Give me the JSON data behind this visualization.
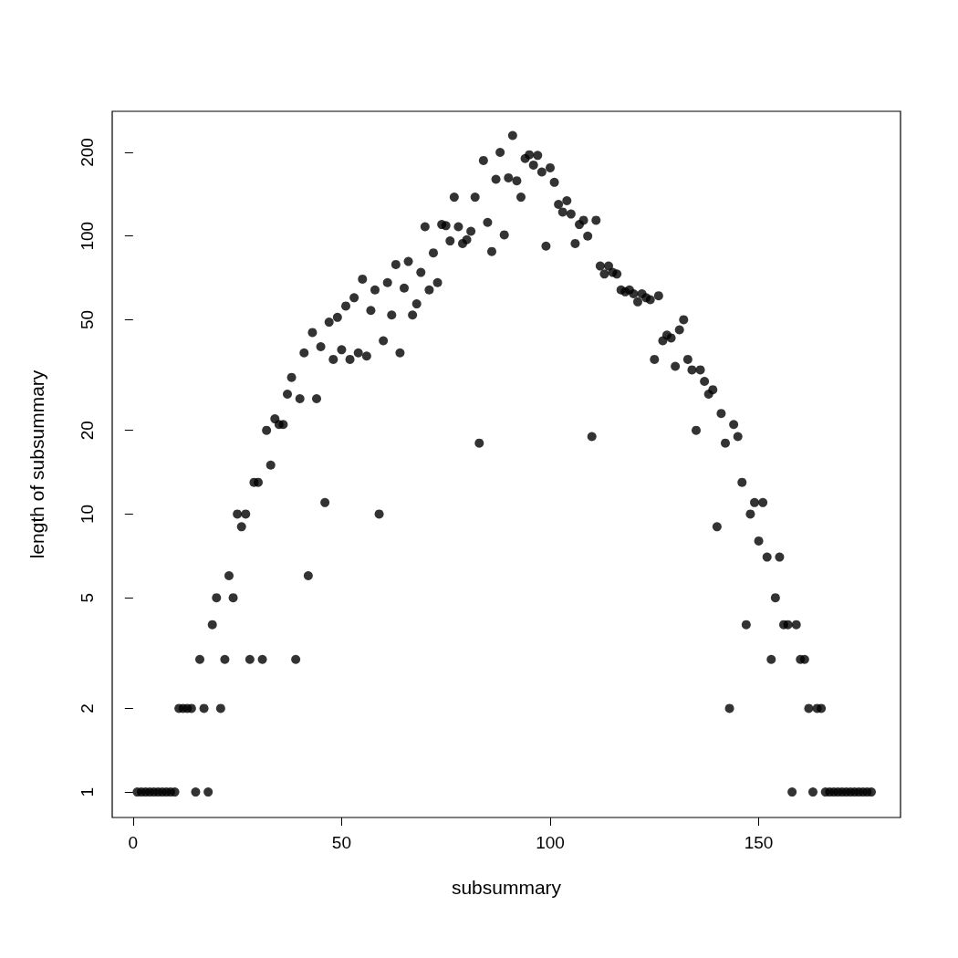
{
  "chart_data": {
    "type": "scatter",
    "xlabel": "subsummary",
    "ylabel": "length of subsummary",
    "log": "y",
    "marker": "circle",
    "grid": false,
    "xlim": [
      -5,
      184
    ],
    "xticks": [
      0,
      50,
      100,
      150
    ],
    "ylim": [
      0.81,
      281
    ],
    "yticks": [
      1,
      2,
      5,
      10,
      20,
      50,
      100,
      200
    ],
    "series": [
      {
        "color": "#000000",
        "x": [
          1,
          2,
          3,
          4,
          5,
          6,
          7,
          8,
          9,
          10,
          11,
          12,
          13,
          14,
          15,
          16,
          17,
          18,
          19,
          20,
          21,
          22,
          23,
          24,
          25,
          26,
          27,
          28,
          29,
          30,
          31,
          32,
          33,
          34,
          35,
          36,
          37,
          38,
          39,
          40,
          41,
          42,
          43,
          44,
          45,
          46,
          47,
          48,
          49,
          50,
          51,
          52,
          53,
          54,
          55,
          56,
          57,
          58,
          59,
          60,
          61,
          62,
          63,
          64,
          65,
          66,
          67,
          68,
          69,
          70,
          71,
          72,
          73,
          74,
          75,
          76,
          77,
          78,
          79,
          80,
          81,
          82,
          83,
          84,
          85,
          86,
          87,
          88,
          89,
          90,
          91,
          92,
          93,
          94,
          95,
          96,
          97,
          98,
          99,
          100,
          101,
          102,
          103,
          104,
          105,
          106,
          107,
          108,
          109,
          110,
          111,
          112,
          113,
          114,
          115,
          116,
          117,
          118,
          119,
          120,
          121,
          122,
          123,
          124,
          125,
          126,
          127,
          128,
          129,
          130,
          131,
          132,
          133,
          134,
          135,
          136,
          137,
          138,
          139,
          140,
          141,
          142,
          143,
          144,
          145,
          146,
          147,
          148,
          149,
          150,
          151,
          152,
          153,
          154,
          155,
          156,
          157,
          158,
          159,
          160,
          161,
          162,
          163,
          164,
          165,
          166,
          167,
          168,
          169,
          170,
          171,
          172,
          173,
          174,
          175,
          176,
          177
        ],
        "values": [
          1,
          1,
          1,
          1,
          1,
          1,
          1,
          1,
          1,
          1,
          2,
          2,
          2,
          2,
          1,
          3,
          2,
          1,
          4,
          5,
          2,
          3,
          6,
          5,
          10,
          9,
          10,
          3,
          13,
          13,
          3,
          20,
          15,
          22,
          21,
          21,
          27,
          31,
          3,
          26,
          38,
          6,
          45,
          26,
          40,
          11,
          49,
          36,
          51,
          39,
          56,
          36,
          60,
          38,
          70,
          37,
          54,
          64,
          10,
          42,
          68,
          52,
          79,
          38,
          65,
          81,
          52,
          57,
          74,
          108,
          64,
          87,
          68,
          110,
          109,
          96,
          138,
          108,
          94,
          97,
          104,
          138,
          18,
          187,
          112,
          88,
          160,
          200,
          101,
          162,
          230,
          158,
          138,
          190,
          196,
          180,
          195,
          170,
          92,
          176,
          156,
          130,
          122,
          134,
          120,
          94,
          110,
          114,
          100,
          19,
          114,
          78,
          73,
          78,
          74,
          73,
          64,
          63,
          64,
          62,
          58,
          62,
          60,
          59,
          36,
          61,
          42,
          44,
          43,
          34,
          46,
          50,
          36,
          33,
          20,
          33,
          30,
          27,
          28,
          9,
          23,
          18,
          2,
          21,
          19,
          13,
          4,
          10,
          11,
          8,
          11,
          7,
          3,
          5,
          7,
          4,
          4,
          1,
          4,
          3,
          3,
          2,
          1,
          2,
          2,
          1,
          1,
          1,
          1,
          1,
          1,
          1,
          1,
          1,
          1,
          1,
          1
        ]
      }
    ]
  }
}
